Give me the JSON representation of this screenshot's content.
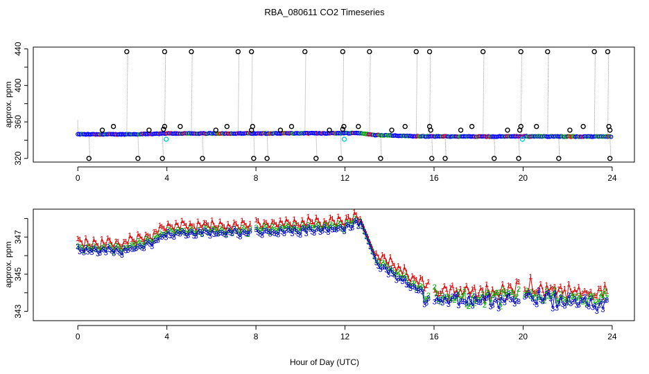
{
  "figure": {
    "title": "RBA_080611  CO2 Timeseries",
    "xlabel": "Hour of Day (UTC)"
  },
  "chart_data": [
    {
      "type": "scatter",
      "name": "overview",
      "ylabel": "approx. ppm",
      "xlim": [
        -2,
        25
      ],
      "ylim": [
        316,
        442
      ],
      "x_ticks": [
        0,
        4,
        8,
        12,
        16,
        20,
        24
      ],
      "y_ticks": [
        320,
        360,
        400,
        440
      ],
      "y_minor_ticks": [
        340,
        380,
        420
      ],
      "colors": {
        "raw": "#000000",
        "trace": "#9a9a9a",
        "cal": "#00cccc",
        "series": "#0000ff",
        "series2": "#dd0000",
        "series3": "#00aa00"
      },
      "baseline": [
        [
          0,
          346.4
        ],
        [
          2,
          346.4
        ],
        [
          3,
          346.7
        ],
        [
          4,
          347.3
        ],
        [
          8,
          347.4
        ],
        [
          12,
          347.6
        ],
        [
          12.5,
          348.0
        ],
        [
          12.7,
          347.5
        ],
        [
          13.3,
          345.7
        ],
        [
          14,
          345.3
        ],
        [
          15,
          344.4
        ],
        [
          16,
          344.1
        ],
        [
          18,
          343.9
        ],
        [
          20,
          344.2
        ],
        [
          22,
          344.0
        ],
        [
          24,
          343.9
        ]
      ],
      "outliers_high": [
        [
          2.2,
          437
        ],
        [
          3.9,
          437
        ],
        [
          5.1,
          437
        ],
        [
          7.2,
          437
        ],
        [
          7.8,
          437
        ],
        [
          10.2,
          437
        ],
        [
          11.9,
          437
        ],
        [
          13.1,
          437
        ],
        [
          15.2,
          437
        ],
        [
          15.8,
          437
        ],
        [
          18.2,
          437
        ],
        [
          19.9,
          437
        ],
        [
          21.1,
          437
        ],
        [
          23.2,
          437
        ],
        [
          23.8,
          437
        ]
      ],
      "outliers_low": [
        [
          0.5,
          320
        ],
        [
          2.7,
          320
        ],
        [
          3.8,
          320
        ],
        [
          5.6,
          320
        ],
        [
          7.9,
          320
        ],
        [
          8.5,
          320
        ],
        [
          10.7,
          320
        ],
        [
          11.8,
          320
        ],
        [
          13.6,
          320
        ],
        [
          15.9,
          320
        ],
        [
          16.5,
          320
        ],
        [
          18.7,
          320
        ],
        [
          19.8,
          320
        ],
        [
          21.6,
          320
        ],
        [
          23.9,
          320
        ]
      ],
      "near_points": [
        [
          1.1,
          351
        ],
        [
          1.6,
          355
        ],
        [
          3.2,
          351
        ],
        [
          3.85,
          352
        ],
        [
          3.9,
          355
        ],
        [
          4.6,
          355
        ],
        [
          6.2,
          351
        ],
        [
          6.7,
          355
        ],
        [
          7.8,
          351
        ],
        [
          7.85,
          355
        ],
        [
          9.1,
          351
        ],
        [
          9.6,
          355
        ],
        [
          11.3,
          351
        ],
        [
          11.9,
          352
        ],
        [
          11.95,
          355
        ],
        [
          12.6,
          355
        ],
        [
          14.1,
          351
        ],
        [
          14.7,
          355
        ],
        [
          15.8,
          355
        ],
        [
          15.85,
          351
        ],
        [
          17.2,
          351
        ],
        [
          17.7,
          355
        ],
        [
          19.3,
          351
        ],
        [
          19.85,
          351
        ],
        [
          19.9,
          355
        ],
        [
          20.6,
          355
        ],
        [
          22.1,
          351
        ],
        [
          22.7,
          355
        ],
        [
          23.9,
          351
        ],
        [
          23.85,
          355
        ]
      ],
      "cal_points": [
        [
          3.97,
          341
        ],
        [
          11.97,
          341
        ],
        [
          19.97,
          341
        ]
      ]
    },
    {
      "type": "scatter",
      "name": "detail",
      "ylabel": "approx. ppm",
      "xlim": [
        -2,
        25
      ],
      "ylim": [
        342.5,
        348.5
      ],
      "x_ticks": [
        0,
        4,
        8,
        12,
        16,
        20,
        24
      ],
      "y_ticks": [
        343,
        345,
        347
      ],
      "y_minor_ticks": [
        344,
        346,
        348
      ],
      "series": [
        {
          "name": "1",
          "symbol": "1",
          "color": "#dd0000",
          "offset": 0.55,
          "amp": 0.55
        },
        {
          "name": "2",
          "symbol": "2",
          "color": "#00aa00",
          "offset": 0.15,
          "amp": 0.3
        },
        {
          "name": "3",
          "symbol": "3",
          "color": "#0000cc",
          "offset": 0.0,
          "amp": 0.3
        }
      ],
      "gaps": [
        [
          7.8,
          8.0
        ],
        [
          15.8,
          16.0
        ],
        [
          19.8,
          20.0
        ]
      ]
    }
  ]
}
